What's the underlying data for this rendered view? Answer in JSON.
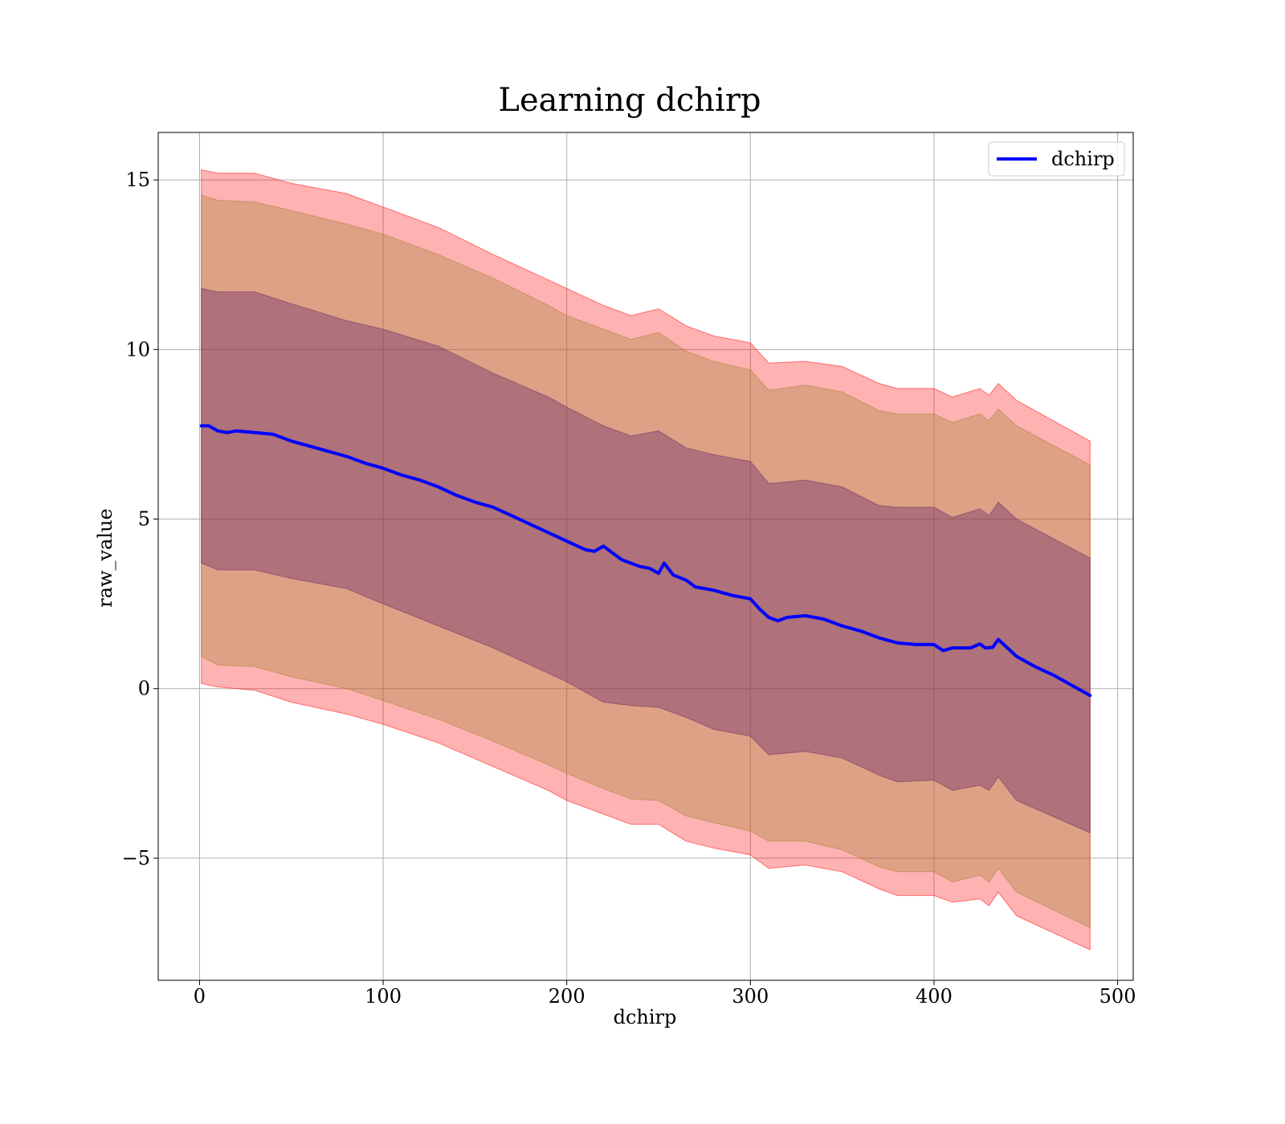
{
  "chart_data": {
    "type": "line",
    "title": "Learning dchirp",
    "xlabel": "dchirp",
    "ylabel": "raw_value",
    "xlim": [
      -22.5,
      508.5
    ],
    "ylim": [
      -8.6,
      16.4
    ],
    "x_ticks": [
      0,
      100,
      200,
      300,
      400,
      500
    ],
    "y_ticks": [
      -5,
      0,
      5,
      10,
      15
    ],
    "y_tick_labels": [
      "−5",
      "0",
      "5",
      "10",
      "15"
    ],
    "grid": true,
    "legend": {
      "position": "top-right",
      "entries": [
        "dchirp"
      ]
    },
    "series": [
      {
        "name": "dchirp",
        "color": "#0000ff",
        "points": [
          [
            1,
            7.75
          ],
          [
            5,
            7.75
          ],
          [
            10,
            7.6
          ],
          [
            15,
            7.55
          ],
          [
            20,
            7.6
          ],
          [
            30,
            7.55
          ],
          [
            40,
            7.5
          ],
          [
            50,
            7.3
          ],
          [
            60,
            7.15
          ],
          [
            70,
            7.0
          ],
          [
            80,
            6.85
          ],
          [
            90,
            6.65
          ],
          [
            100,
            6.5
          ],
          [
            110,
            6.3
          ],
          [
            120,
            6.15
          ],
          [
            130,
            5.95
          ],
          [
            140,
            5.7
          ],
          [
            150,
            5.5
          ],
          [
            160,
            5.35
          ],
          [
            170,
            5.1
          ],
          [
            180,
            4.85
          ],
          [
            190,
            4.6
          ],
          [
            200,
            4.35
          ],
          [
            210,
            4.1
          ],
          [
            215,
            4.05
          ],
          [
            220,
            4.2
          ],
          [
            225,
            4.0
          ],
          [
            230,
            3.8
          ],
          [
            240,
            3.6
          ],
          [
            245,
            3.55
          ],
          [
            250,
            3.4
          ],
          [
            253,
            3.7
          ],
          [
            258,
            3.35
          ],
          [
            265,
            3.2
          ],
          [
            270,
            3.0
          ],
          [
            280,
            2.9
          ],
          [
            290,
            2.75
          ],
          [
            300,
            2.65
          ],
          [
            305,
            2.35
          ],
          [
            310,
            2.1
          ],
          [
            315,
            2.0
          ],
          [
            320,
            2.1
          ],
          [
            330,
            2.15
          ],
          [
            340,
            2.05
          ],
          [
            350,
            1.85
          ],
          [
            360,
            1.7
          ],
          [
            370,
            1.5
          ],
          [
            380,
            1.35
          ],
          [
            390,
            1.3
          ],
          [
            400,
            1.3
          ],
          [
            405,
            1.12
          ],
          [
            410,
            1.2
          ],
          [
            420,
            1.2
          ],
          [
            425,
            1.32
          ],
          [
            428,
            1.2
          ],
          [
            432,
            1.22
          ],
          [
            435,
            1.45
          ],
          [
            440,
            1.2
          ],
          [
            445,
            0.95
          ],
          [
            455,
            0.65
          ],
          [
            465,
            0.4
          ],
          [
            475,
            0.1
          ],
          [
            485,
            -0.2
          ]
        ]
      }
    ],
    "bands": [
      {
        "color": "#ff0000",
        "opacity": 0.3,
        "points": [
          [
            1,
            0.15,
            15.3
          ],
          [
            10,
            0.05,
            15.2
          ],
          [
            30,
            -0.05,
            15.2
          ],
          [
            50,
            -0.4,
            14.9
          ],
          [
            80,
            -0.75,
            14.6
          ],
          [
            100,
            -1.05,
            14.2
          ],
          [
            130,
            -1.6,
            13.6
          ],
          [
            160,
            -2.3,
            12.8
          ],
          [
            190,
            -3.0,
            12.05
          ],
          [
            200,
            -3.3,
            11.8
          ],
          [
            220,
            -3.7,
            11.3
          ],
          [
            235,
            -4.0,
            11.0
          ],
          [
            250,
            -4.0,
            11.2
          ],
          [
            265,
            -4.5,
            10.7
          ],
          [
            280,
            -4.7,
            10.4
          ],
          [
            300,
            -4.9,
            10.2
          ],
          [
            310,
            -5.3,
            9.6
          ],
          [
            330,
            -5.2,
            9.65
          ],
          [
            350,
            -5.4,
            9.5
          ],
          [
            370,
            -5.9,
            9.0
          ],
          [
            380,
            -6.1,
            8.85
          ],
          [
            400,
            -6.1,
            8.85
          ],
          [
            410,
            -6.3,
            8.6
          ],
          [
            425,
            -6.2,
            8.85
          ],
          [
            430,
            -6.4,
            8.65
          ],
          [
            435,
            -6.0,
            9.0
          ],
          [
            445,
            -6.7,
            8.5
          ],
          [
            485,
            -7.7,
            7.3
          ]
        ]
      },
      {
        "color": "#a08030",
        "opacity": 0.35,
        "points": [
          [
            1,
            0.95,
            14.55
          ],
          [
            10,
            0.7,
            14.4
          ],
          [
            30,
            0.65,
            14.35
          ],
          [
            50,
            0.35,
            14.1
          ],
          [
            80,
            0.0,
            13.7
          ],
          [
            100,
            -0.35,
            13.4
          ],
          [
            130,
            -0.9,
            12.8
          ],
          [
            160,
            -1.55,
            12.1
          ],
          [
            190,
            -2.25,
            11.3
          ],
          [
            200,
            -2.5,
            11.0
          ],
          [
            220,
            -2.95,
            10.6
          ],
          [
            235,
            -3.25,
            10.3
          ],
          [
            250,
            -3.3,
            10.5
          ],
          [
            265,
            -3.75,
            9.95
          ],
          [
            280,
            -3.95,
            9.65
          ],
          [
            300,
            -4.2,
            9.4
          ],
          [
            310,
            -4.5,
            8.8
          ],
          [
            330,
            -4.5,
            8.95
          ],
          [
            350,
            -4.75,
            8.75
          ],
          [
            370,
            -5.25,
            8.2
          ],
          [
            380,
            -5.4,
            8.1
          ],
          [
            400,
            -5.4,
            8.1
          ],
          [
            410,
            -5.7,
            7.85
          ],
          [
            425,
            -5.5,
            8.1
          ],
          [
            430,
            -5.7,
            7.9
          ],
          [
            435,
            -5.3,
            8.25
          ],
          [
            445,
            -6.0,
            7.75
          ],
          [
            485,
            -7.05,
            6.6
          ]
        ]
      },
      {
        "color": "#6a2a6a",
        "opacity": 0.4,
        "points": [
          [
            1,
            3.7,
            11.8
          ],
          [
            10,
            3.5,
            11.7
          ],
          [
            30,
            3.5,
            11.7
          ],
          [
            50,
            3.25,
            11.35
          ],
          [
            80,
            2.95,
            10.85
          ],
          [
            100,
            2.5,
            10.6
          ],
          [
            130,
            1.85,
            10.1
          ],
          [
            160,
            1.2,
            9.3
          ],
          [
            190,
            0.45,
            8.6
          ],
          [
            200,
            0.2,
            8.3
          ],
          [
            220,
            -0.4,
            7.75
          ],
          [
            235,
            -0.5,
            7.45
          ],
          [
            250,
            -0.55,
            7.6
          ],
          [
            265,
            -0.85,
            7.1
          ],
          [
            280,
            -1.2,
            6.9
          ],
          [
            300,
            -1.4,
            6.7
          ],
          [
            310,
            -1.95,
            6.05
          ],
          [
            330,
            -1.85,
            6.15
          ],
          [
            350,
            -2.05,
            5.95
          ],
          [
            370,
            -2.55,
            5.4
          ],
          [
            380,
            -2.75,
            5.35
          ],
          [
            400,
            -2.7,
            5.35
          ],
          [
            410,
            -3.0,
            5.05
          ],
          [
            425,
            -2.85,
            5.3
          ],
          [
            430,
            -3.0,
            5.1
          ],
          [
            435,
            -2.6,
            5.5
          ],
          [
            445,
            -3.3,
            5.0
          ],
          [
            485,
            -4.25,
            3.85
          ]
        ]
      }
    ]
  }
}
